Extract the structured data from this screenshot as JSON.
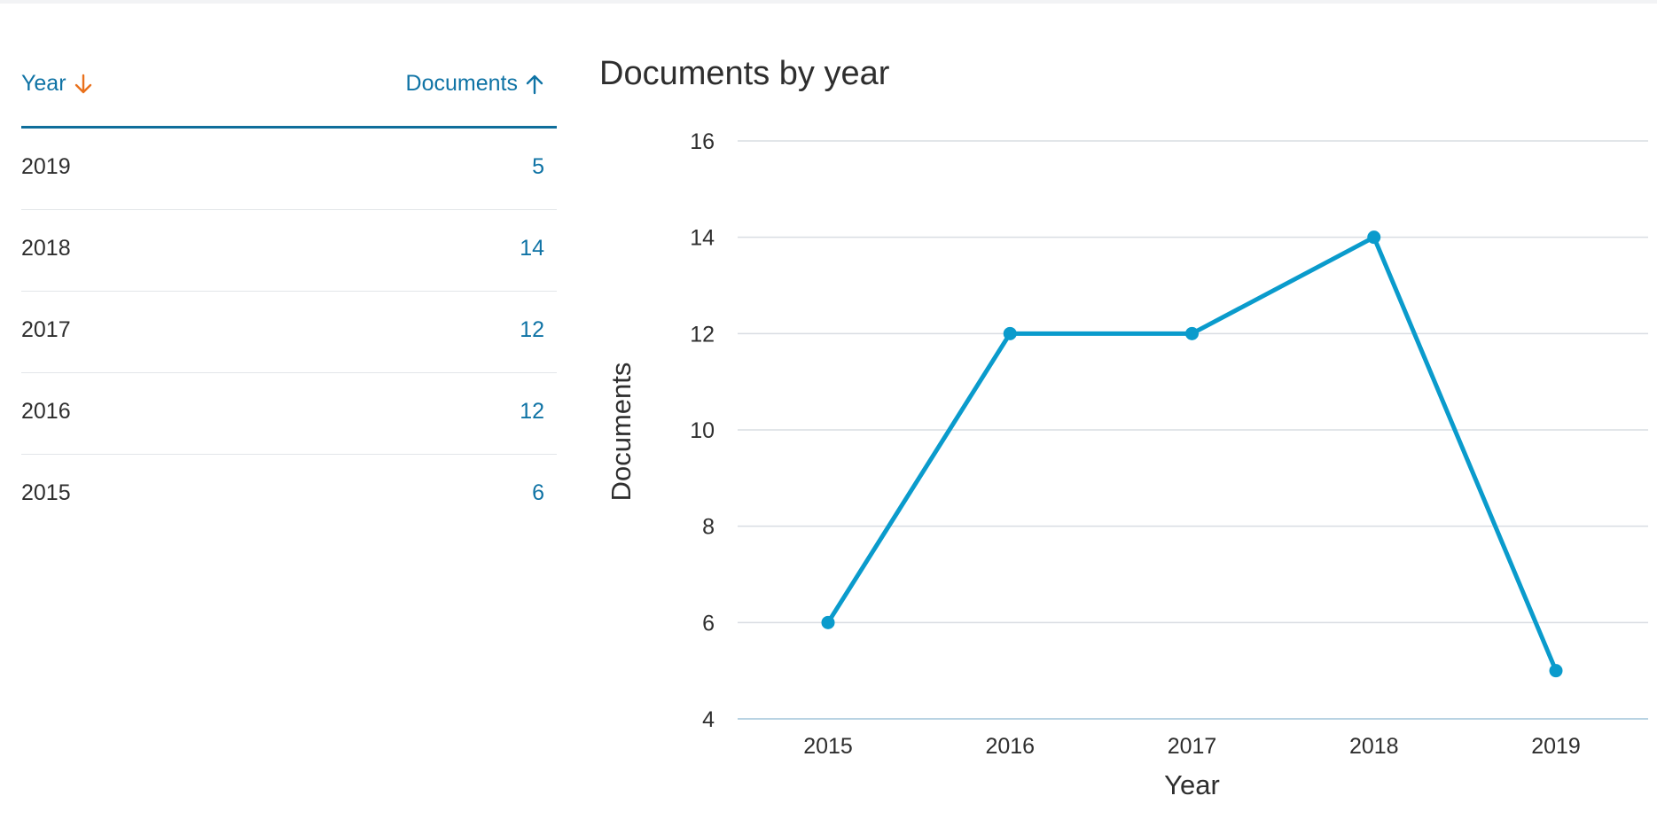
{
  "table": {
    "headers": {
      "year": "Year",
      "documents": "Documents"
    },
    "rows": [
      {
        "year": "2019",
        "documents": "5"
      },
      {
        "year": "2018",
        "documents": "14"
      },
      {
        "year": "2017",
        "documents": "12"
      },
      {
        "year": "2016",
        "documents": "12"
      },
      {
        "year": "2015",
        "documents": "6"
      }
    ]
  },
  "colors": {
    "link": "#0f73a5",
    "sort_active": "#e9711c",
    "series": "#0a9bcc",
    "grid": "#d9dde2"
  },
  "chart_data": {
    "type": "line",
    "title": "Documents by year",
    "xlabel": "Year",
    "ylabel": "Documents",
    "categories": [
      "2015",
      "2016",
      "2017",
      "2018",
      "2019"
    ],
    "series": [
      {
        "values": [
          6,
          12,
          12,
          14,
          5
        ]
      }
    ],
    "ylim": [
      4,
      16
    ],
    "yticks": [
      4,
      6,
      8,
      10,
      12,
      14,
      16
    ],
    "grid": true
  }
}
